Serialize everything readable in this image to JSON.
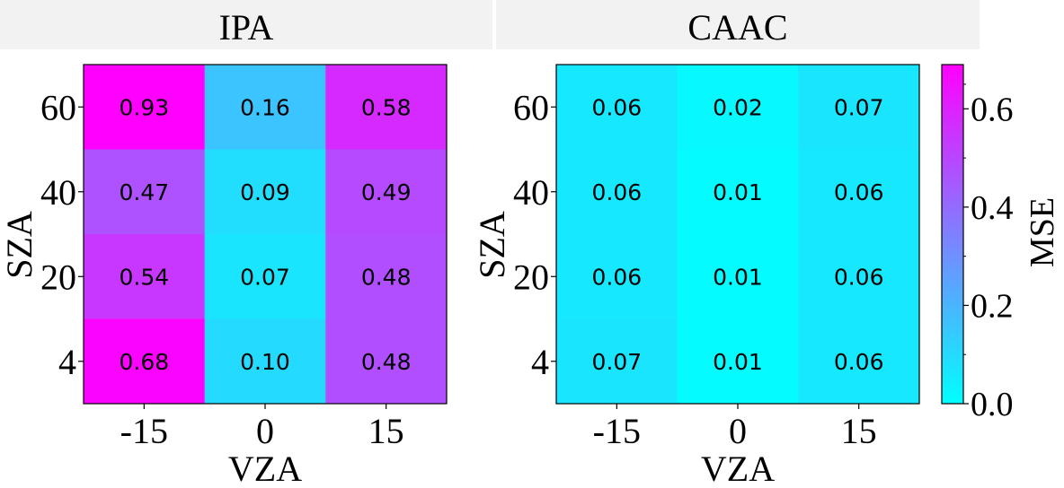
{
  "chart_data": {
    "type": "heatmap",
    "colorbar": {
      "label": "MSE",
      "ticks": [
        0.0,
        0.2,
        0.4,
        0.6
      ],
      "tick_labels": [
        "0.0",
        "0.2",
        "0.4",
        "0.6"
      ],
      "range": [
        0.0,
        0.69
      ],
      "colormap": [
        "#00ffff",
        "#ff00ff"
      ]
    },
    "panels": [
      {
        "title": "IPA",
        "xlabel": "VZA",
        "ylabel": "SZA",
        "x_categories": [
          "-15",
          "0",
          "15"
        ],
        "y_categories": [
          "60",
          "40",
          "20",
          "4"
        ],
        "values": [
          [
            0.93,
            0.16,
            0.58
          ],
          [
            0.47,
            0.09,
            0.49
          ],
          [
            0.54,
            0.07,
            0.48
          ],
          [
            0.68,
            0.1,
            0.48
          ]
        ],
        "labels": [
          [
            "0.93",
            "0.16",
            "0.58"
          ],
          [
            "0.47",
            "0.09",
            "0.49"
          ],
          [
            "0.54",
            "0.07",
            "0.48"
          ],
          [
            "0.68",
            "0.10",
            "0.48"
          ]
        ]
      },
      {
        "title": "CAAC",
        "xlabel": "VZA",
        "ylabel": "SZA",
        "x_categories": [
          "-15",
          "0",
          "15"
        ],
        "y_categories": [
          "60",
          "40",
          "20",
          "4"
        ],
        "values": [
          [
            0.06,
            0.02,
            0.07
          ],
          [
            0.06,
            0.01,
            0.06
          ],
          [
            0.06,
            0.01,
            0.06
          ],
          [
            0.07,
            0.01,
            0.06
          ]
        ],
        "labels": [
          [
            "0.06",
            "0.02",
            "0.07"
          ],
          [
            "0.06",
            "0.01",
            "0.06"
          ],
          [
            "0.06",
            "0.01",
            "0.06"
          ],
          [
            "0.07",
            "0.01",
            "0.06"
          ]
        ]
      }
    ]
  }
}
